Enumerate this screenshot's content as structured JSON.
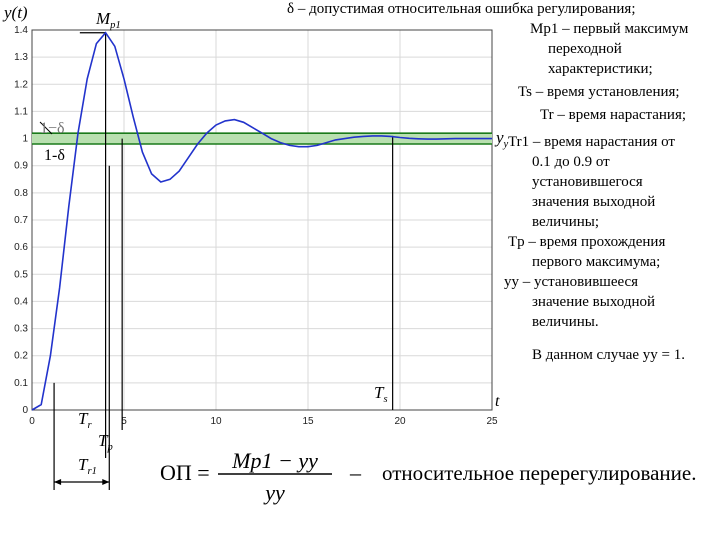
{
  "chart_data": {
    "type": "line",
    "x_ticks": [
      0,
      5,
      10,
      15,
      20,
      25
    ],
    "y_ticks": [
      "0",
      "0.1",
      "0.2",
      "0.3",
      "0.4",
      "0.5",
      "0.6",
      "0.7",
      "0.8",
      "0.9",
      "1",
      "1.1",
      "1.2",
      "1.3",
      "1.4"
    ],
    "xlim": [
      0,
      25
    ],
    "ylim": [
      0,
      1.4
    ],
    "grid": true,
    "series": [
      {
        "x": [
          0,
          0.5,
          1,
          1.5,
          2,
          2.5,
          3,
          3.5,
          4,
          4.5,
          5,
          5.5,
          6,
          6.5,
          7,
          7.5,
          8,
          8.5,
          9,
          9.5,
          10,
          10.5,
          11,
          11.5,
          12,
          12.5,
          13,
          13.5,
          14,
          14.5,
          15,
          15.5,
          16,
          16.5,
          17,
          17.5,
          18,
          18.5,
          19,
          19.5,
          20,
          20.5,
          21,
          21.5,
          22,
          22.5,
          23,
          23.5,
          24,
          24.5,
          25
        ],
        "y": [
          0,
          0.02,
          0.2,
          0.45,
          0.75,
          1.02,
          1.22,
          1.35,
          1.39,
          1.34,
          1.22,
          1.08,
          0.95,
          0.87,
          0.84,
          0.85,
          0.88,
          0.93,
          0.98,
          1.02,
          1.05,
          1.065,
          1.07,
          1.06,
          1.04,
          1.02,
          1.0,
          0.985,
          0.975,
          0.97,
          0.97,
          0.975,
          0.985,
          0.995,
          1.0,
          1.005,
          1.008,
          1.01,
          1.01,
          1.008,
          1.004,
          1.001,
          0.999,
          0.998,
          0.998,
          0.999,
          1.0,
          1.0,
          1.0,
          1.0,
          1.0
        ]
      }
    ],
    "band": {
      "center": 1.0,
      "half_width": 0.02
    },
    "markers": {
      "Tr1_start": 1.2,
      "Tr": 4.9,
      "Tr1_end": 4.2,
      "Tp": 4.0,
      "Ts": 19.6
    }
  },
  "labels": {
    "y_axis": "y(t)",
    "x_axis": "t",
    "mp1": "Mp1",
    "one_minus_delta_upper": "1−δ",
    "one_minus_delta_lower": "1-δ",
    "yy": "yy",
    "ts": "Ts",
    "tr": "Tr",
    "tp": "Tp",
    "tr1": "Tr1"
  },
  "legend": {
    "delta": "δ – допустимая относительная ошибка регулирования;",
    "mp1_a": "Mp1 – первый максимум",
    "mp1_b": "переходной",
    "mp1_c": "характеристики;",
    "ts": "Ts – время установления;",
    "tr": "Tr – время нарастания;",
    "tr1_a": "Tr1 – время нарастания от",
    "tr1_b": "0.1 до 0.9 от",
    "tr1_c": "установившегося",
    "tr1_d": "значения выходной",
    "tr1_e": "величины;",
    "tp_a": "Tp – время прохождения",
    "tp_b": "первого максимума;",
    "yy_a": "yy – установившееся",
    "yy_b": "значение выходной",
    "yy_c": "величины.",
    "case": "В данном случае yy = 1."
  },
  "formula": {
    "lhs": "ОП =",
    "numerator": "Mp1 − yy",
    "denominator": "yy",
    "dash": "–",
    "description": "относительное перерегулирование."
  }
}
